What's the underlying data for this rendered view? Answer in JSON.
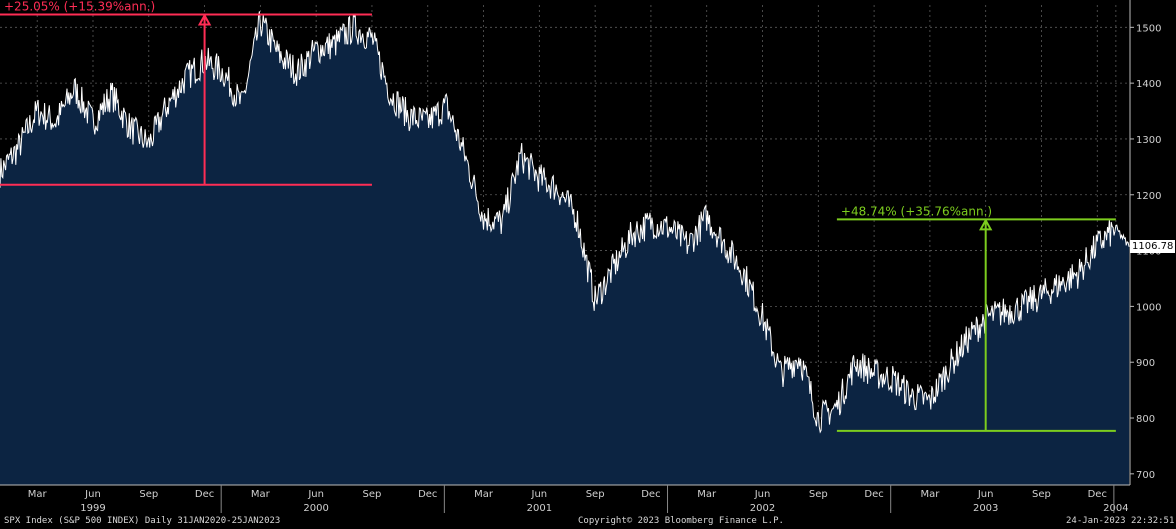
{
  "chart_data": {
    "type": "area",
    "y_ticks": [
      700,
      800,
      900,
      1000,
      1100,
      1200,
      1300,
      1400,
      1500
    ],
    "ylim": [
      680,
      1540
    ],
    "x_labels": [
      {
        "m": "Mar",
        "y": ""
      },
      {
        "m": "Jun",
        "y": "1999"
      },
      {
        "m": "Sep",
        "y": ""
      },
      {
        "m": "Dec",
        "y": ""
      },
      {
        "m": "Mar",
        "y": ""
      },
      {
        "m": "Jun",
        "y": "2000"
      },
      {
        "m": "Sep",
        "y": ""
      },
      {
        "m": "Dec",
        "y": ""
      },
      {
        "m": "Mar",
        "y": ""
      },
      {
        "m": "Jun",
        "y": "2001"
      },
      {
        "m": "Sep",
        "y": ""
      },
      {
        "m": "Dec",
        "y": ""
      },
      {
        "m": "Mar",
        "y": ""
      },
      {
        "m": "Jun",
        "y": "2002"
      },
      {
        "m": "Sep",
        "y": ""
      },
      {
        "m": "Dec",
        "y": ""
      },
      {
        "m": "Mar",
        "y": ""
      },
      {
        "m": "Jun",
        "y": "2003"
      },
      {
        "m": "Sep",
        "y": ""
      },
      {
        "m": "Dec",
        "y": ""
      },
      {
        "m": "",
        "y": "2004"
      }
    ],
    "series_points": [
      [
        "1999-01",
        1240
      ],
      [
        "1999-02",
        1285
      ],
      [
        "1999-03",
        1350
      ],
      [
        "1999-04",
        1330
      ],
      [
        "1999-05",
        1390
      ],
      [
        "1999-06",
        1330
      ],
      [
        "1999-07",
        1380
      ],
      [
        "1999-08",
        1320
      ],
      [
        "1999-09",
        1290
      ],
      [
        "1999-10",
        1360
      ],
      [
        "1999-11",
        1410
      ],
      [
        "1999-12",
        1440
      ],
      [
        "2000-01",
        1420
      ],
      [
        "2000-02",
        1360
      ],
      [
        "2000-03",
        1510
      ],
      [
        "2000-04",
        1450
      ],
      [
        "2000-05",
        1420
      ],
      [
        "2000-06",
        1460
      ],
      [
        "2000-07",
        1470
      ],
      [
        "2000-08",
        1500
      ],
      [
        "2000-09",
        1480
      ],
      [
        "2000-10",
        1380
      ],
      [
        "2000-11",
        1340
      ],
      [
        "2000-12",
        1330
      ],
      [
        "2001-01",
        1360
      ],
      [
        "2001-02",
        1270
      ],
      [
        "2001-03",
        1160
      ],
      [
        "2001-04",
        1150
      ],
      [
        "2001-05",
        1270
      ],
      [
        "2001-06",
        1230
      ],
      [
        "2001-07",
        1210
      ],
      [
        "2001-08",
        1160
      ],
      [
        "2001-09",
        1010
      ],
      [
        "2001-10",
        1070
      ],
      [
        "2001-11",
        1130
      ],
      [
        "2001-12",
        1150
      ],
      [
        "2002-01",
        1140
      ],
      [
        "2002-02",
        1110
      ],
      [
        "2002-03",
        1160
      ],
      [
        "2002-04",
        1110
      ],
      [
        "2002-05",
        1060
      ],
      [
        "2002-06",
        980
      ],
      [
        "2002-07",
        880
      ],
      [
        "2002-08",
        910
      ],
      [
        "2002-09",
        800
      ],
      [
        "2002-10",
        820
      ],
      [
        "2002-11",
        900
      ],
      [
        "2002-12",
        880
      ],
      [
        "2003-01",
        870
      ],
      [
        "2003-02",
        840
      ],
      [
        "2003-03",
        830
      ],
      [
        "2003-04",
        890
      ],
      [
        "2003-05",
        940
      ],
      [
        "2003-06",
        980
      ],
      [
        "2003-07",
        990
      ],
      [
        "2003-08",
        1000
      ],
      [
        "2003-09",
        1020
      ],
      [
        "2003-10",
        1040
      ],
      [
        "2003-11",
        1060
      ],
      [
        "2003-12",
        1110
      ],
      [
        "2004-01",
        1140
      ],
      [
        "2004-01-23",
        1106.78
      ]
    ],
    "annotations": [
      {
        "text": "+25.05% (+15.39%ann.)",
        "color": "#ff2d55",
        "from": 1218,
        "to": 1523,
        "x_start": "1999-01",
        "x_end": "2000-09",
        "x_arrow": "1999-12"
      },
      {
        "text": "+48.74% (+35.76%ann.)",
        "color": "#7ccc1e",
        "from": 777,
        "to": 1156,
        "x_start": "2002-10",
        "x_end": "2004-01",
        "x_arrow": "2003-06"
      }
    ],
    "last_value": "1106.78",
    "colors": {
      "fill": "#0c2442",
      "line": "#ffffff",
      "grid": "#5a5a5a",
      "background": "#000000"
    }
  },
  "footer": {
    "left": "SPX Index (S&P 500 INDEX)  Daily 31JAN2020-25JAN2023",
    "center": "Copyright© 2023 Bloomberg Finance L.P.",
    "right": "24-Jan-2023 22:32:51"
  }
}
